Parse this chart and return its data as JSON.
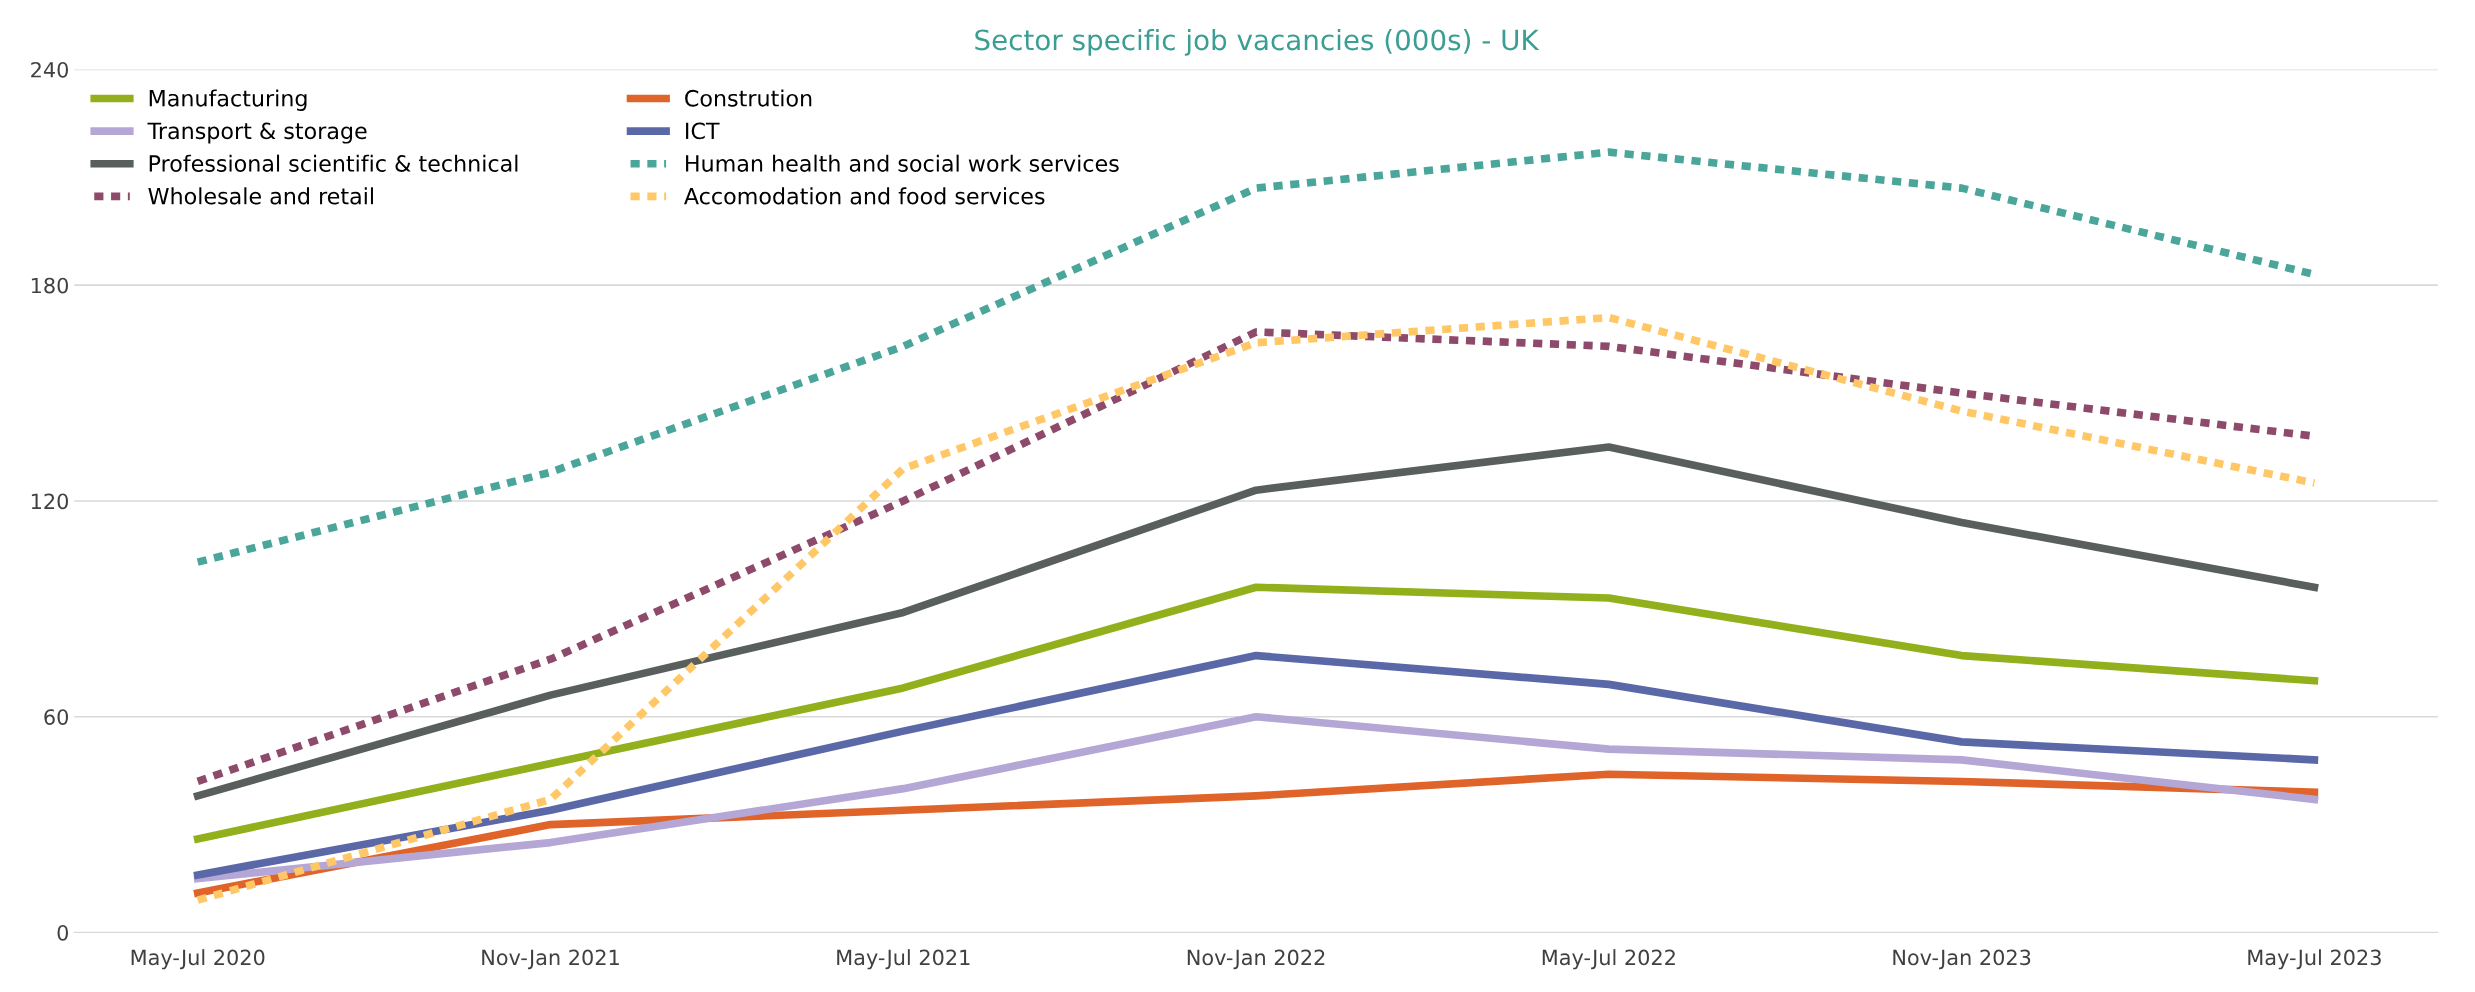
{
  "chart_data": {
    "type": "line",
    "title": "Sector specific job vacancies (000s) - UK",
    "categories": [
      "May-Jul 2020",
      "Nov-Jan 2021",
      "May-Jul 2021",
      "Nov-Jan 2022",
      "May-Jul 2022",
      "Nov-Jan 2023",
      "May-Jul 2023"
    ],
    "series": [
      {
        "name": "Manufacturing",
        "color": "#92b01c",
        "line_style": "solid",
        "values": [
          26,
          47,
          68,
          96,
          93,
          77,
          70
        ]
      },
      {
        "name": "Constrution",
        "color": "#e0632a",
        "line_style": "solid",
        "values": [
          11,
          30,
          34,
          38,
          44,
          42,
          39
        ]
      },
      {
        "name": "Transport & storage",
        "color": "#b4a7d6",
        "line_style": "solid",
        "values": [
          15,
          25,
          40,
          60,
          51,
          48,
          37
        ]
      },
      {
        "name": "ICT",
        "color": "#5a68a8",
        "line_style": "solid",
        "values": [
          16,
          34,
          56,
          77,
          69,
          53,
          48
        ]
      },
      {
        "name": "Professional scientific & technical",
        "color": "#595f5c",
        "line_style": "solid",
        "values": [
          38,
          66,
          89,
          123,
          135,
          114,
          96
        ]
      },
      {
        "name": "Human health and social work services",
        "color": "#4aa59a",
        "line_style": "dashed",
        "values": [
          103,
          128,
          163,
          207,
          217,
          207,
          183
        ]
      },
      {
        "name": "Wholesale and retail",
        "color": "#8e4a6a",
        "line_style": "dashed",
        "values": [
          42,
          76,
          120,
          167,
          163,
          150,
          138
        ]
      },
      {
        "name": "Accomodation and food services",
        "color": "#ffc766",
        "line_style": "dashed",
        "values": [
          9,
          37,
          129,
          164,
          171,
          145,
          125
        ]
      }
    ],
    "ylim": [
      0,
      240
    ],
    "yticks": [
      0,
      60,
      120,
      180,
      240
    ],
    "grid": "y",
    "legend": "top left"
  }
}
